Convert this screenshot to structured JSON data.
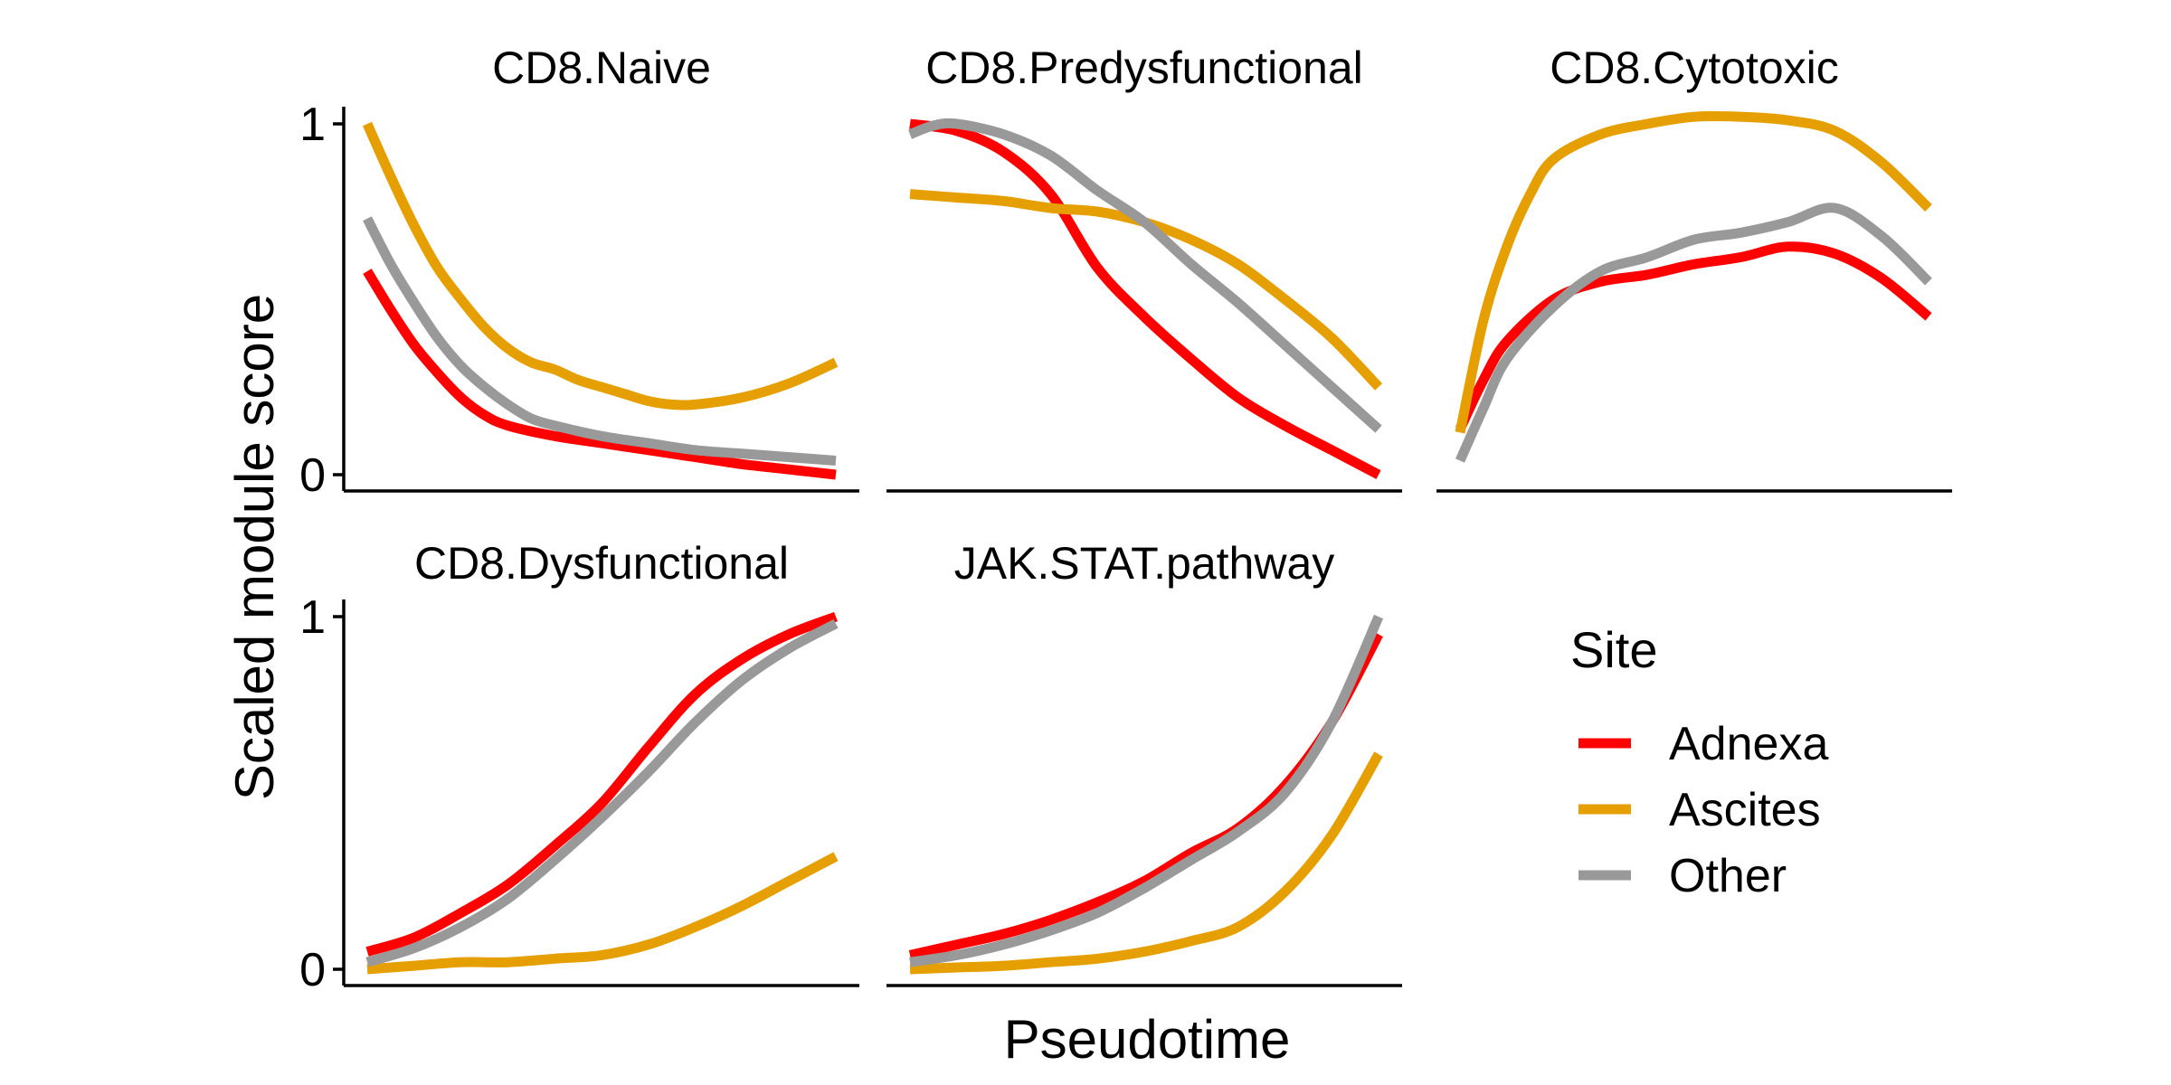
{
  "chart_data": {
    "type": "line",
    "xlabel": "Pseudotime",
    "ylabel": "Scaled module score",
    "ylim": [
      0,
      1
    ],
    "y_ticks": [
      "0",
      "1"
    ],
    "x_ticks": [],
    "grid": false,
    "legend": {
      "title": "Site",
      "position": "right",
      "entries": [
        "Adnexa",
        "Ascites",
        "Other"
      ]
    },
    "colors": {
      "Adnexa": "#ff0000",
      "Ascites": "#e69f00",
      "Other": "#999999"
    },
    "panels": [
      {
        "title": "CD8.Naive",
        "series": [
          {
            "name": "Adnexa",
            "x": [
              0,
              0.05,
              0.1,
              0.15,
              0.2,
              0.25,
              0.3,
              0.4,
              0.5,
              0.6,
              0.7,
              0.8,
              0.9,
              1.0
            ],
            "y": [
              0.58,
              0.47,
              0.37,
              0.29,
              0.22,
              0.17,
              0.14,
              0.11,
              0.09,
              0.07,
              0.05,
              0.03,
              0.015,
              0.0
            ]
          },
          {
            "name": "Ascites",
            "x": [
              0,
              0.05,
              0.1,
              0.15,
              0.2,
              0.25,
              0.3,
              0.35,
              0.4,
              0.45,
              0.5,
              0.55,
              0.6,
              0.65,
              0.7,
              0.8,
              0.9,
              1.0
            ],
            "y": [
              1.0,
              0.85,
              0.71,
              0.59,
              0.5,
              0.42,
              0.36,
              0.32,
              0.3,
              0.27,
              0.25,
              0.23,
              0.21,
              0.2,
              0.2,
              0.22,
              0.26,
              0.32
            ]
          },
          {
            "name": "Other",
            "x": [
              0,
              0.05,
              0.1,
              0.15,
              0.2,
              0.25,
              0.3,
              0.35,
              0.4,
              0.5,
              0.6,
              0.7,
              0.8,
              0.9,
              1.0
            ],
            "y": [
              0.73,
              0.6,
              0.49,
              0.39,
              0.31,
              0.25,
              0.2,
              0.16,
              0.14,
              0.11,
              0.09,
              0.07,
              0.06,
              0.05,
              0.04
            ]
          }
        ]
      },
      {
        "title": "CD8.Predysfunctional",
        "series": [
          {
            "name": "Adnexa",
            "x": [
              0,
              0.1,
              0.2,
              0.3,
              0.4,
              0.5,
              0.6,
              0.7,
              0.8,
              0.9,
              1.0
            ],
            "y": [
              1.0,
              0.98,
              0.92,
              0.8,
              0.59,
              0.45,
              0.33,
              0.22,
              0.14,
              0.07,
              0.0
            ]
          },
          {
            "name": "Ascites",
            "x": [
              0,
              0.1,
              0.2,
              0.3,
              0.4,
              0.5,
              0.6,
              0.7,
              0.8,
              0.9,
              1.0
            ],
            "y": [
              0.8,
              0.79,
              0.78,
              0.76,
              0.75,
              0.72,
              0.67,
              0.6,
              0.5,
              0.39,
              0.25
            ]
          },
          {
            "name": "Other",
            "x": [
              0,
              0.05,
              0.1,
              0.2,
              0.3,
              0.4,
              0.5,
              0.6,
              0.7,
              0.8,
              0.9,
              1.0
            ],
            "y": [
              0.97,
              0.995,
              1.0,
              0.97,
              0.91,
              0.81,
              0.72,
              0.6,
              0.49,
              0.37,
              0.25,
              0.13
            ]
          }
        ]
      },
      {
        "title": "CD8.Cytotoxic",
        "series": [
          {
            "name": "Adnexa",
            "x": [
              0,
              0.05,
              0.1,
              0.2,
              0.3,
              0.4,
              0.5,
              0.6,
              0.7,
              0.8,
              0.9,
              1.0
            ],
            "y": [
              0.13,
              0.27,
              0.38,
              0.5,
              0.55,
              0.57,
              0.6,
              0.62,
              0.65,
              0.63,
              0.56,
              0.45
            ]
          },
          {
            "name": "Ascites",
            "x": [
              0,
              0.05,
              0.1,
              0.15,
              0.2,
              0.3,
              0.4,
              0.5,
              0.6,
              0.7,
              0.8,
              0.9,
              1.0
            ],
            "y": [
              0.12,
              0.44,
              0.65,
              0.8,
              0.9,
              0.97,
              1.0,
              1.02,
              1.02,
              1.01,
              0.98,
              0.89,
              0.76
            ]
          },
          {
            "name": "Other",
            "x": [
              0,
              0.05,
              0.1,
              0.2,
              0.3,
              0.4,
              0.5,
              0.6,
              0.7,
              0.8,
              0.9,
              1.0
            ],
            "y": [
              0.04,
              0.19,
              0.33,
              0.48,
              0.58,
              0.62,
              0.67,
              0.69,
              0.72,
              0.76,
              0.68,
              0.55
            ]
          }
        ]
      },
      {
        "title": "CD8.Dysfunctional",
        "series": [
          {
            "name": "Adnexa",
            "x": [
              0,
              0.1,
              0.2,
              0.3,
              0.4,
              0.5,
              0.6,
              0.7,
              0.8,
              0.9,
              1.0
            ],
            "y": [
              0.05,
              0.09,
              0.16,
              0.24,
              0.35,
              0.47,
              0.63,
              0.78,
              0.88,
              0.95,
              1.0
            ]
          },
          {
            "name": "Ascites",
            "x": [
              0,
              0.1,
              0.2,
              0.3,
              0.4,
              0.5,
              0.6,
              0.7,
              0.8,
              0.9,
              1.0
            ],
            "y": [
              0.0,
              0.01,
              0.02,
              0.02,
              0.03,
              0.04,
              0.07,
              0.12,
              0.18,
              0.25,
              0.32
            ]
          },
          {
            "name": "Other",
            "x": [
              0,
              0.1,
              0.2,
              0.3,
              0.4,
              0.5,
              0.6,
              0.7,
              0.8,
              0.9,
              1.0
            ],
            "y": [
              0.02,
              0.06,
              0.12,
              0.2,
              0.31,
              0.43,
              0.56,
              0.7,
              0.82,
              0.91,
              0.98
            ]
          }
        ]
      },
      {
        "title": "JAK.STAT.pathway",
        "series": [
          {
            "name": "Adnexa",
            "x": [
              0,
              0.1,
              0.2,
              0.3,
              0.4,
              0.5,
              0.6,
              0.7,
              0.8,
              0.9,
              1.0
            ],
            "y": [
              0.04,
              0.07,
              0.1,
              0.14,
              0.19,
              0.25,
              0.33,
              0.4,
              0.52,
              0.7,
              0.95
            ]
          },
          {
            "name": "Ascites",
            "x": [
              0,
              0.1,
              0.2,
              0.3,
              0.4,
              0.5,
              0.6,
              0.7,
              0.8,
              0.9,
              1.0
            ],
            "y": [
              0.0,
              0.005,
              0.01,
              0.02,
              0.03,
              0.05,
              0.08,
              0.12,
              0.22,
              0.38,
              0.61
            ]
          },
          {
            "name": "Other",
            "x": [
              0,
              0.1,
              0.2,
              0.3,
              0.4,
              0.5,
              0.6,
              0.7,
              0.8,
              0.9,
              1.0
            ],
            "y": [
              0.02,
              0.04,
              0.07,
              0.11,
              0.16,
              0.23,
              0.31,
              0.39,
              0.5,
              0.7,
              1.0
            ]
          }
        ]
      }
    ]
  }
}
